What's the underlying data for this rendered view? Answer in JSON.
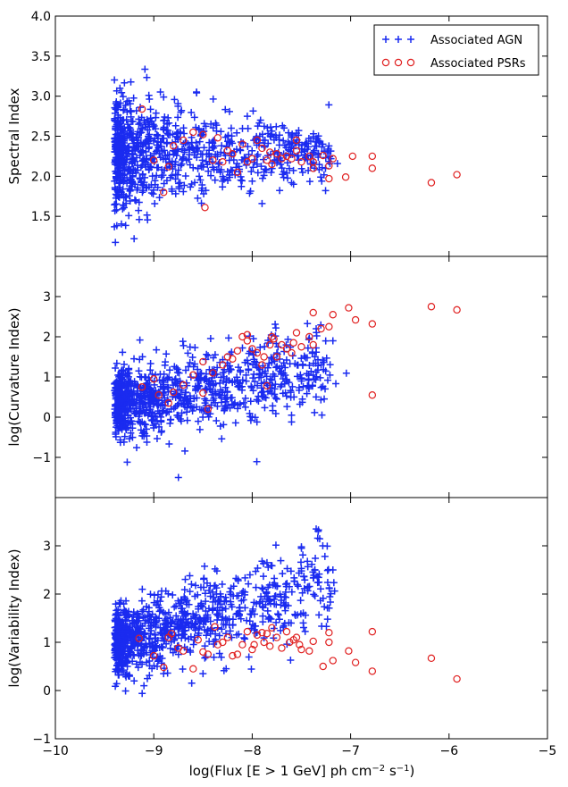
{
  "chart_data": {
    "type": "scatter",
    "x_label": "log(Flux [E > 1 GeV] ph cm",
    "x_label_sup1": "−2",
    "x_label_mid": " s",
    "x_label_sup2": "−1",
    "x_label_end": ")",
    "xlim": [
      -10,
      -5
    ],
    "x_ticks": [
      -10,
      -9,
      -8,
      -7,
      -6,
      -5
    ],
    "x_tick_labels": [
      "−10",
      "−9",
      "−8",
      "−7",
      "−6",
      "−5"
    ],
    "legend": {
      "position": "top-right",
      "agn_label": "Associated AGN",
      "psr_label": "Associated PSRs"
    },
    "colors": {
      "agn": "#1a2bf0",
      "psr": "#e02020"
    },
    "panels": [
      {
        "ylabel": "Spectral Index",
        "ylim": [
          1.0,
          4.0
        ],
        "y_ticks": [
          1.5,
          2.0,
          2.5,
          3.0,
          3.5,
          4.0
        ],
        "y_tick_labels": [
          "1.5",
          "2.0",
          "2.5",
          "3.0",
          "3.5",
          "4.0"
        ],
        "agn_model": {
          "xmin": -9.4,
          "xmax": -7.2,
          "center_near": 2.3,
          "center_far": 2.3,
          "spread_near": 0.35,
          "spread_far": 0.15,
          "count": 900
        },
        "agn_extra": [
          [
            -7.5,
            2.3
          ],
          [
            -7.35,
            2.47
          ],
          [
            -7.32,
            2.43
          ],
          [
            -7.2,
            2.22
          ],
          [
            -7.6,
            1.92
          ],
          [
            -7.58,
            1.9
          ],
          [
            -7.9,
            1.66
          ],
          [
            -8.0,
            1.94
          ],
          [
            -9.2,
            1.22
          ],
          [
            -9.4,
            1.37
          ],
          [
            -9.05,
            3.01
          ],
          [
            -8.9,
            2.99
          ],
          [
            -8.05,
            2.75
          ]
        ],
        "psr": [
          [
            -9.12,
            2.84
          ],
          [
            -9.0,
            2.2
          ],
          [
            -8.9,
            1.8
          ],
          [
            -8.85,
            2.12
          ],
          [
            -8.8,
            2.38
          ],
          [
            -8.7,
            2.45
          ],
          [
            -8.6,
            2.55
          ],
          [
            -8.5,
            2.52
          ],
          [
            -8.48,
            1.61
          ],
          [
            -8.4,
            2.2
          ],
          [
            -8.35,
            2.48
          ],
          [
            -8.3,
            2.18
          ],
          [
            -8.25,
            2.32
          ],
          [
            -8.2,
            2.28
          ],
          [
            -8.15,
            2.05
          ],
          [
            -8.1,
            2.4
          ],
          [
            -8.05,
            2.18
          ],
          [
            -8.0,
            2.22
          ],
          [
            -7.95,
            2.45
          ],
          [
            -7.9,
            2.35
          ],
          [
            -7.85,
            2.2
          ],
          [
            -7.82,
            2.3
          ],
          [
            -7.8,
            2.15
          ],
          [
            -7.75,
            2.28
          ],
          [
            -7.7,
            2.22
          ],
          [
            -7.65,
            2.25
          ],
          [
            -7.6,
            2.22
          ],
          [
            -7.55,
            2.45
          ],
          [
            -7.55,
            2.32
          ],
          [
            -7.5,
            2.18
          ],
          [
            -7.42,
            2.25
          ],
          [
            -7.38,
            2.18
          ],
          [
            -7.38,
            2.1
          ],
          [
            -7.28,
            2.26
          ],
          [
            -7.22,
            2.13
          ],
          [
            -7.22,
            1.97
          ],
          [
            -7.18,
            2.22
          ],
          [
            -7.05,
            1.99
          ],
          [
            -6.98,
            2.25
          ],
          [
            -6.78,
            2.25
          ],
          [
            -6.78,
            2.1
          ],
          [
            -6.18,
            1.92
          ],
          [
            -5.92,
            2.02
          ]
        ]
      },
      {
        "ylabel": "log(Curvature Index)",
        "ylim": [
          -2.0,
          4.0
        ],
        "y_ticks": [
          -1,
          0,
          1,
          2,
          3
        ],
        "y_tick_labels": [
          "−1",
          "0",
          "1",
          "2",
          "3"
        ],
        "agn_model": {
          "xmin": -9.4,
          "xmax": -7.2,
          "center_near": 0.3,
          "center_far": 1.2,
          "spread_near": 0.45,
          "spread_far": 0.5,
          "count": 950
        },
        "agn_extra": [
          [
            -7.35,
            2.2
          ],
          [
            -7.18,
            1.9
          ],
          [
            -7.3,
            1.3
          ],
          [
            -7.5,
            0.9
          ],
          [
            -7.6,
            0.05
          ],
          [
            -7.6,
            -0.12
          ],
          [
            -8.75,
            -1.5
          ],
          [
            -9.27,
            -1.12
          ],
          [
            -8.0,
            0.0
          ],
          [
            -7.75,
            0.45
          ]
        ],
        "psr": [
          [
            -9.12,
            0.75
          ],
          [
            -9.0,
            0.95
          ],
          [
            -8.95,
            0.55
          ],
          [
            -8.85,
            0.35
          ],
          [
            -8.8,
            0.62
          ],
          [
            -8.7,
            0.8
          ],
          [
            -8.6,
            1.05
          ],
          [
            -8.5,
            0.6
          ],
          [
            -8.5,
            1.38
          ],
          [
            -8.45,
            0.2
          ],
          [
            -8.4,
            1.1
          ],
          [
            -8.3,
            1.3
          ],
          [
            -8.25,
            1.5
          ],
          [
            -8.2,
            1.45
          ],
          [
            -8.15,
            1.65
          ],
          [
            -8.1,
            2.0
          ],
          [
            -8.05,
            1.9
          ],
          [
            -8.05,
            2.05
          ],
          [
            -8.0,
            1.7
          ],
          [
            -7.95,
            1.6
          ],
          [
            -7.9,
            1.3
          ],
          [
            -7.88,
            1.5
          ],
          [
            -7.85,
            0.78
          ],
          [
            -7.82,
            1.8
          ],
          [
            -7.8,
            2.0
          ],
          [
            -7.78,
            1.95
          ],
          [
            -7.75,
            1.5
          ],
          [
            -7.7,
            1.8
          ],
          [
            -7.65,
            1.7
          ],
          [
            -7.6,
            1.6
          ],
          [
            -7.58,
            1.85
          ],
          [
            -7.55,
            2.1
          ],
          [
            -7.5,
            1.75
          ],
          [
            -7.42,
            2.0
          ],
          [
            -7.38,
            2.6
          ],
          [
            -7.38,
            1.8
          ],
          [
            -7.3,
            2.2
          ],
          [
            -7.22,
            2.25
          ],
          [
            -7.18,
            2.55
          ],
          [
            -7.02,
            2.72
          ],
          [
            -6.95,
            2.42
          ],
          [
            -6.78,
            2.32
          ],
          [
            -6.78,
            0.55
          ],
          [
            -6.18,
            2.75
          ],
          [
            -5.92,
            2.67
          ]
        ]
      },
      {
        "ylabel": "log(Variability Index)",
        "ylim": [
          -1.0,
          4.0
        ],
        "y_ticks": [
          -1,
          0,
          1,
          2,
          3
        ],
        "y_tick_labels": [
          "−1",
          "0",
          "1",
          "2",
          "3"
        ],
        "agn_model": {
          "xmin": -9.4,
          "xmax": -7.2,
          "center_near": 1.0,
          "center_far": 2.2,
          "spread_near": 0.35,
          "spread_far": 0.45,
          "count": 950
        },
        "agn_extra": [
          [
            -7.35,
            3.35
          ],
          [
            -7.33,
            3.3
          ],
          [
            -7.5,
            2.98
          ],
          [
            -7.5,
            2.95
          ],
          [
            -7.18,
            2.5
          ],
          [
            -7.5,
            2.48
          ],
          [
            -7.9,
            2.68
          ],
          [
            -7.85,
            2.65
          ],
          [
            -9.1,
            0.1
          ],
          [
            -9.2,
            0.2
          ],
          [
            -8.5,
            0.35
          ],
          [
            -8.9,
            0.35
          ]
        ],
        "psr": [
          [
            -9.15,
            1.08
          ],
          [
            -9.0,
            0.72
          ],
          [
            -8.9,
            0.48
          ],
          [
            -8.85,
            1.1
          ],
          [
            -8.82,
            1.18
          ],
          [
            -8.75,
            0.88
          ],
          [
            -8.7,
            0.82
          ],
          [
            -8.6,
            0.45
          ],
          [
            -8.55,
            1.05
          ],
          [
            -8.5,
            0.8
          ],
          [
            -8.45,
            0.75
          ],
          [
            -8.38,
            1.32
          ],
          [
            -8.35,
            0.95
          ],
          [
            -8.3,
            1.0
          ],
          [
            -8.25,
            1.1
          ],
          [
            -8.2,
            0.72
          ],
          [
            -8.15,
            0.75
          ],
          [
            -8.1,
            0.95
          ],
          [
            -8.05,
            1.22
          ],
          [
            -8.0,
            0.85
          ],
          [
            -7.98,
            0.95
          ],
          [
            -7.95,
            1.15
          ],
          [
            -7.9,
            1.2
          ],
          [
            -7.88,
            1.0
          ],
          [
            -7.85,
            1.18
          ],
          [
            -7.82,
            0.92
          ],
          [
            -7.8,
            1.3
          ],
          [
            -7.75,
            1.1
          ],
          [
            -7.7,
            0.88
          ],
          [
            -7.65,
            1.22
          ],
          [
            -7.62,
            1.0
          ],
          [
            -7.58,
            1.05
          ],
          [
            -7.55,
            1.1
          ],
          [
            -7.52,
            0.95
          ],
          [
            -7.5,
            0.85
          ],
          [
            -7.42,
            0.82
          ],
          [
            -7.38,
            1.02
          ],
          [
            -7.28,
            0.5
          ],
          [
            -7.22,
            1.0
          ],
          [
            -7.22,
            1.2
          ],
          [
            -7.18,
            0.62
          ],
          [
            -7.02,
            0.82
          ],
          [
            -6.95,
            0.58
          ],
          [
            -6.78,
            1.22
          ],
          [
            -6.78,
            0.4
          ],
          [
            -6.18,
            0.67
          ],
          [
            -5.92,
            0.24
          ]
        ]
      }
    ]
  }
}
